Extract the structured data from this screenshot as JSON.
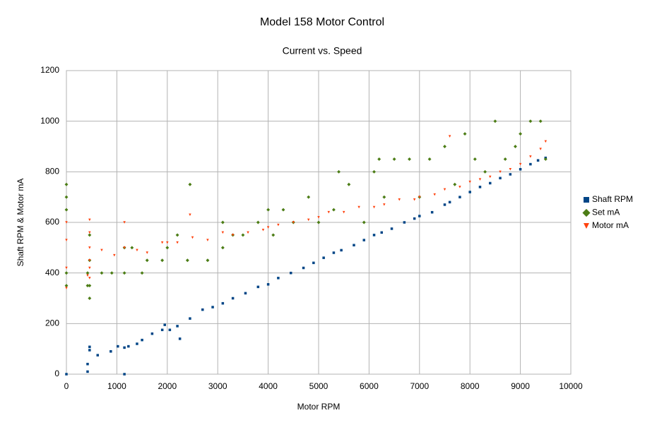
{
  "chart_data": {
    "type": "scatter",
    "title": "Model 158 Motor Control",
    "subtitle": "Current vs. Speed",
    "x_label": "Motor RPM",
    "y_label": "Shaft RPM & Motor mA",
    "xlim": [
      0,
      10000
    ],
    "xticks": [
      0,
      1000,
      2000,
      3000,
      4000,
      5000,
      6000,
      7000,
      8000,
      9000,
      10000
    ],
    "ylim": [
      0,
      1200
    ],
    "yticks": [
      0,
      200,
      400,
      600,
      800,
      1000,
      1200
    ],
    "grid": true,
    "legend": "right",
    "series": [
      {
        "name": "Shaft RPM",
        "color": "#004586",
        "marker": "square",
        "x": [
          0,
          420,
          420,
          460,
          460,
          620,
          880,
          1020,
          1150,
          1150,
          1230,
          1400,
          1500,
          1700,
          1900,
          1950,
          2050,
          2200,
          2250,
          2450,
          2700,
          2900,
          3100,
          3300,
          3550,
          3800,
          4000,
          4200,
          4450,
          4700,
          4900,
          5100,
          5300,
          5450,
          5700,
          5900,
          6100,
          6250,
          6450,
          6700,
          6900,
          7000,
          7250,
          7500,
          7600,
          7800,
          8000,
          8200,
          8400,
          8600,
          8800,
          9000,
          9200,
          9350,
          9500
        ],
        "values": [
          0,
          10,
          40,
          95,
          108,
          75,
          90,
          110,
          105,
          0,
          110,
          120,
          135,
          160,
          175,
          195,
          175,
          190,
          140,
          220,
          255,
          265,
          280,
          300,
          320,
          345,
          355,
          380,
          400,
          420,
          440,
          460,
          480,
          490,
          510,
          530,
          550,
          560,
          575,
          600,
          615,
          625,
          640,
          670,
          680,
          700,
          720,
          740,
          755,
          775,
          790,
          810,
          830,
          845,
          855
        ]
      },
      {
        "name": "Set mA",
        "color": "#4c7d16",
        "marker": "diamond",
        "x": [
          0,
          0,
          0,
          0,
          0,
          420,
          420,
          460,
          460,
          460,
          460,
          700,
          900,
          1150,
          1150,
          1300,
          1500,
          1600,
          1900,
          2000,
          2200,
          2400,
          2450,
          2800,
          3100,
          3100,
          3300,
          3500,
          3800,
          4000,
          4100,
          4300,
          4500,
          4800,
          5000,
          5300,
          5400,
          5600,
          5900,
          6100,
          6200,
          6300,
          6500,
          6800,
          7000,
          7200,
          7500,
          7700,
          7900,
          8100,
          8300,
          8500,
          8700,
          8900,
          9000,
          9200,
          9400,
          9500
        ],
        "values": [
          750,
          700,
          650,
          400,
          350,
          400,
          350,
          550,
          450,
          350,
          300,
          400,
          400,
          500,
          400,
          500,
          400,
          450,
          450,
          500,
          550,
          450,
          750,
          450,
          600,
          500,
          550,
          550,
          600,
          650,
          550,
          650,
          600,
          700,
          600,
          650,
          800,
          750,
          600,
          800,
          850,
          700,
          850,
          850,
          700,
          850,
          900,
          750,
          950,
          850,
          800,
          1000,
          850,
          900,
          950,
          1000,
          1000,
          850
        ]
      },
      {
        "name": "Motor mA",
        "color": "#ff420e",
        "marker": "triangle",
        "x": [
          0,
          0,
          0,
          0,
          420,
          460,
          460,
          460,
          460,
          460,
          460,
          700,
          950,
          1150,
          1150,
          1400,
          1600,
          1900,
          2000,
          2200,
          2450,
          2500,
          2800,
          3100,
          3300,
          3600,
          3900,
          4000,
          4200,
          4500,
          4800,
          5000,
          5200,
          5500,
          5800,
          6100,
          6300,
          6600,
          6900,
          7000,
          7300,
          7500,
          7600,
          7800,
          8000,
          8200,
          8400,
          8600,
          8800,
          9000,
          9200,
          9400,
          9500
        ],
        "values": [
          340,
          420,
          530,
          600,
          390,
          610,
          560,
          500,
          450,
          420,
          380,
          490,
          470,
          500,
          600,
          490,
          480,
          520,
          520,
          520,
          630,
          540,
          530,
          560,
          550,
          560,
          570,
          580,
          590,
          600,
          610,
          620,
          640,
          640,
          660,
          660,
          670,
          690,
          690,
          700,
          710,
          730,
          940,
          740,
          760,
          770,
          780,
          800,
          810,
          830,
          860,
          890,
          920
        ]
      }
    ]
  }
}
